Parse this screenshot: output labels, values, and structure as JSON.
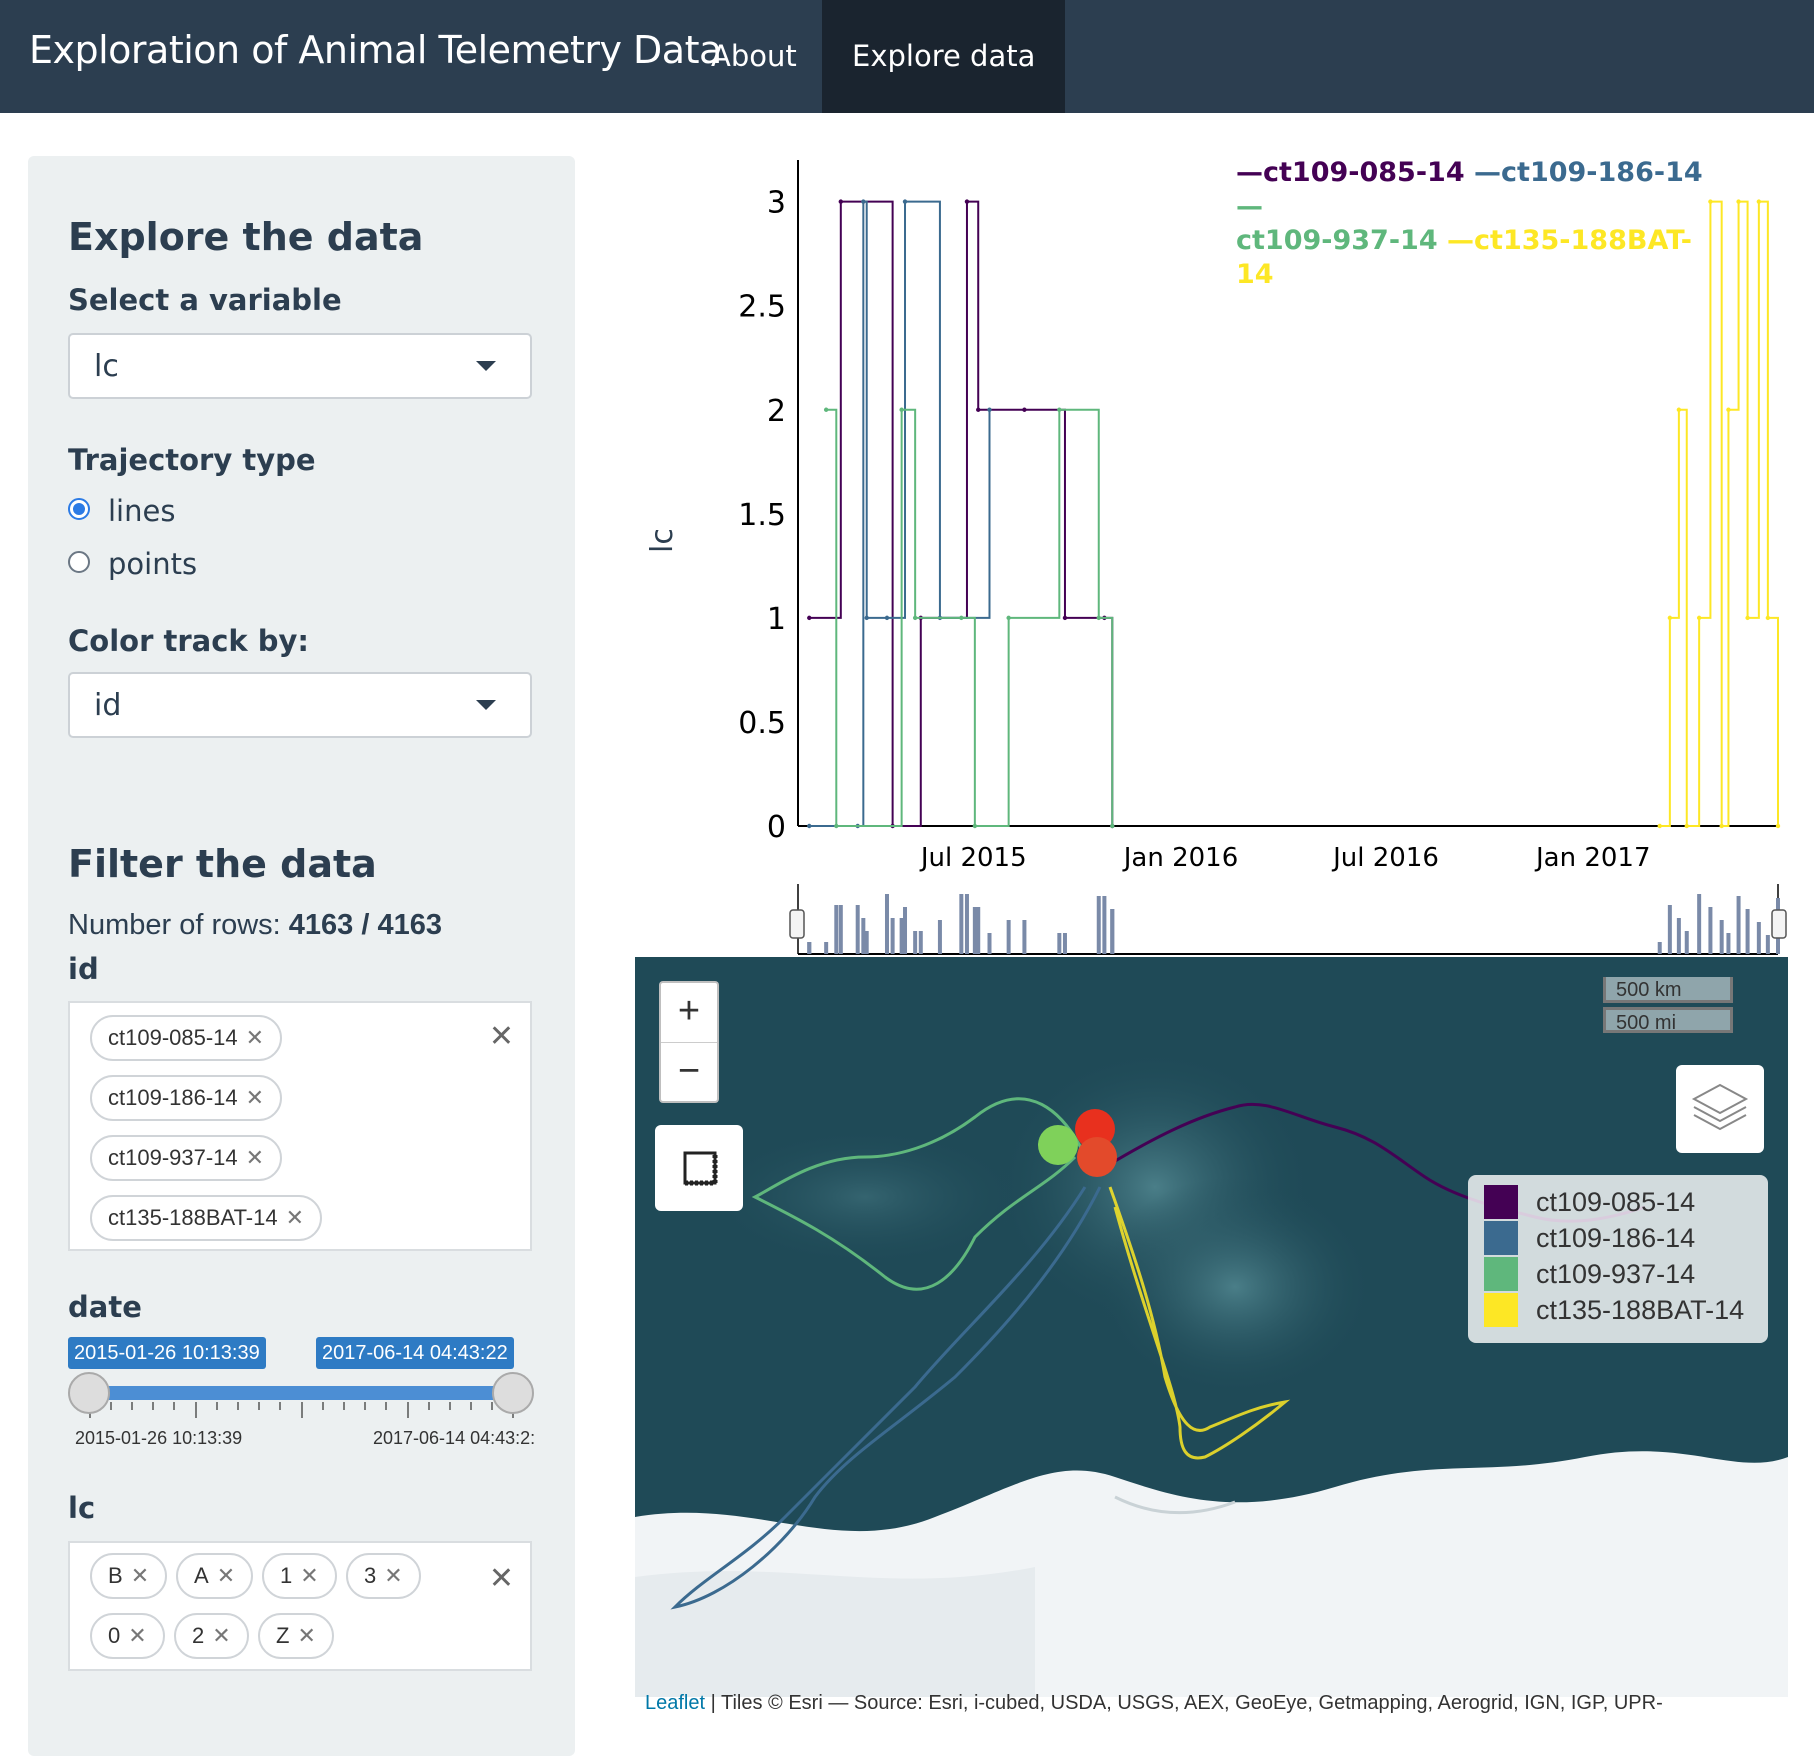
{
  "navbar": {
    "brand": "Exploration of Animal Telemetry Data",
    "items": [
      {
        "label": "About",
        "active": false
      },
      {
        "label": "Explore data",
        "active": true
      }
    ]
  },
  "sidebar": {
    "explore_title": "Explore the data",
    "variable": {
      "label": "Select a variable",
      "value": "lc"
    },
    "trajectory": {
      "label": "Trajectory type",
      "options": [
        {
          "label": "lines",
          "selected": true
        },
        {
          "label": "points",
          "selected": false
        }
      ]
    },
    "color_by": {
      "label": "Color track by:",
      "value": "id"
    },
    "filter_title": "Filter the data",
    "rows": {
      "prefix": "Number of rows: ",
      "value": "4163 / 4163"
    },
    "id_filter": {
      "label": "id",
      "chips": [
        "ct109-085-14",
        "ct109-186-14",
        "ct109-937-14",
        "ct135-188BAT-14"
      ]
    },
    "date_filter": {
      "label": "date",
      "from": "2015-01-26 10:13:39",
      "to": "2017-06-14 04:43:22",
      "min_label": "2015-01-26 10:13:39",
      "max_label": "2017-06-14 04:43:2:"
    },
    "lc_filter": {
      "label": "lc",
      "chips": [
        "B",
        "A",
        "1",
        "3",
        "0",
        "2",
        "Z"
      ]
    }
  },
  "chart_data": {
    "type": "line",
    "ylabel": "lc",
    "xlabel": "",
    "yticks": [
      "0",
      "0.5",
      "1",
      "1.5",
      "2",
      "2.5",
      "3"
    ],
    "xticks": [
      "Jul 2015",
      "Jan 2016",
      "Jul 2016",
      "Jan 2017"
    ],
    "ylim": [
      0,
      3.2
    ],
    "xlim": [
      "2015-01-26",
      "2017-06-14"
    ],
    "grid": false,
    "legend": "top-right",
    "series": [
      {
        "name": "ct109-085-14",
        "color": "#440154",
        "points": [
          [
            "2015-02-05",
            1
          ],
          [
            "2015-03-05",
            3
          ],
          [
            "2015-04-20",
            0
          ],
          [
            "2015-05-15",
            1
          ],
          [
            "2015-06-25",
            3
          ],
          [
            "2015-07-05",
            2
          ],
          [
            "2015-08-15",
            2
          ],
          [
            "2015-09-20",
            1
          ],
          [
            "2015-10-25",
            1
          ],
          [
            "2015-11-01",
            0
          ]
        ]
      },
      {
        "name": "ct109-186-14",
        "color": "#3b6a8f",
        "points": [
          [
            "2015-02-05",
            0
          ],
          [
            "2015-03-20",
            0
          ],
          [
            "2015-03-25",
            3
          ],
          [
            "2015-03-28",
            1
          ],
          [
            "2015-04-15",
            1
          ],
          [
            "2015-05-01",
            3
          ],
          [
            "2015-06-01",
            1
          ],
          [
            "2015-07-15",
            2
          ]
        ]
      },
      {
        "name": "ct109-937-14",
        "color": "#5fb77c",
        "points": [
          [
            "2015-02-20",
            2
          ],
          [
            "2015-03-01",
            0
          ],
          [
            "2015-04-28",
            2
          ],
          [
            "2015-05-10",
            1
          ],
          [
            "2015-06-20",
            1
          ],
          [
            "2015-07-02",
            0
          ],
          [
            "2015-08-01",
            1
          ],
          [
            "2015-09-15",
            2
          ],
          [
            "2015-10-20",
            1
          ],
          [
            "2015-11-01",
            0
          ]
        ]
      },
      {
        "name": "ct135-188BAT-14",
        "color": "#fde725",
        "points": [
          [
            "2017-03-01",
            0
          ],
          [
            "2017-03-10",
            1
          ],
          [
            "2017-03-18",
            2
          ],
          [
            "2017-03-25",
            0
          ],
          [
            "2017-04-05",
            1
          ],
          [
            "2017-04-15",
            3
          ],
          [
            "2017-04-25",
            0
          ],
          [
            "2017-05-01",
            2
          ],
          [
            "2017-05-10",
            3
          ],
          [
            "2017-05-18",
            1
          ],
          [
            "2017-05-28",
            3
          ],
          [
            "2017-06-05",
            1
          ],
          [
            "2017-06-14",
            0
          ]
        ]
      }
    ]
  },
  "map": {
    "zoom_in": "+",
    "zoom_out": "−",
    "scale_km": "500 km",
    "scale_mi": "500 mi",
    "legend": [
      {
        "label": "ct109-085-14",
        "color": "#440154"
      },
      {
        "label": "ct109-186-14",
        "color": "#3b6a8f"
      },
      {
        "label": "ct109-937-14",
        "color": "#5fb77c"
      },
      {
        "label": "ct135-188BAT-14",
        "color": "#fde725"
      }
    ],
    "attribution_link": "Leaflet",
    "attribution_text": " | Tiles © Esri — Source: Esri, i-cubed, USDA, USGS, AEX, GeoEye, Getmapping, Aerogrid, IGN, IGP, UPR-"
  },
  "icons": {
    "measure": "ruler-icon",
    "layers": "layers-icon",
    "caret": "caret-down-icon",
    "clear": "clear-icon"
  },
  "colors": {
    "navbar": "#2c3e50",
    "navbar_active": "#1a242f",
    "sidebar": "#ecf0f1",
    "accent": "#2e7bc4"
  }
}
